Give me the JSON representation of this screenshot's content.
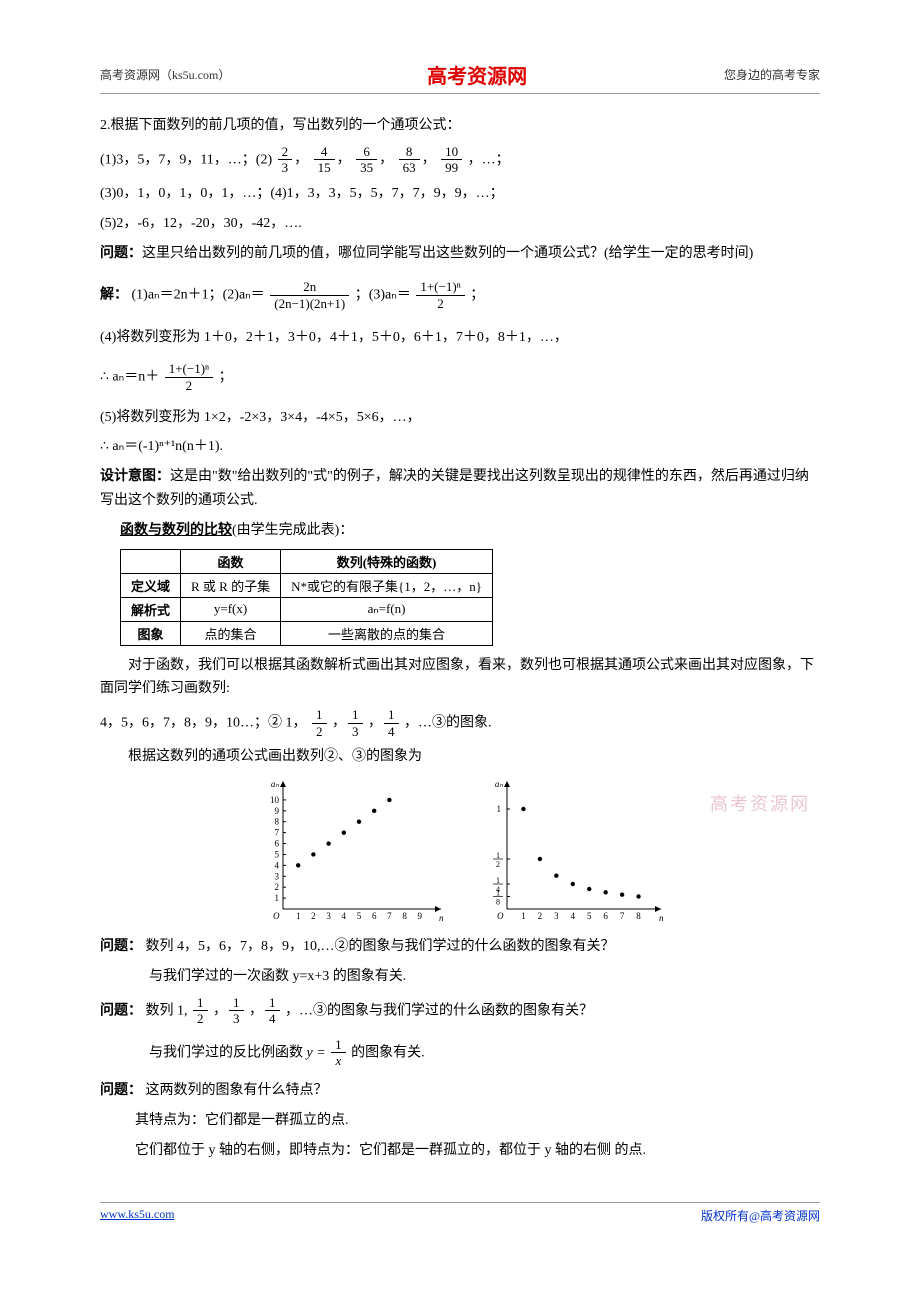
{
  "header": {
    "left": "高考资源网（ks5u.com）",
    "center": "高考资源网",
    "right": "您身边的高考专家"
  },
  "body": {
    "p1": "2.根据下面数列的前几项的值，写出数列的一个通项公式：",
    "seq1_prefix": "(1)3，5，7，9，11，…；(2)",
    "seq1_fracs": [
      {
        "n": "2",
        "d": "3"
      },
      {
        "n": "4",
        "d": "15"
      },
      {
        "n": "6",
        "d": "35"
      },
      {
        "n": "8",
        "d": "63"
      },
      {
        "n": "10",
        "d": "99"
      }
    ],
    "seq1_suffix": "，…；",
    "seq3": "(3)0，1，0，1，0，1，…；(4)1，3，3，5，5，7，7，9，9，…；",
    "seq5": "(5)2，-6，12，-20，30，-42，….",
    "q1": "问题：",
    "q1_text": "这里只给出数列的前几项的值，哪位同学能写出这些数列的一个通项公式？(给学生一定的思考时间)",
    "ans_label": "解：",
    "ans1_prefix": "(1)aₙ＝2n＋1；(2)aₙ＝",
    "ans2_frac": {
      "n": "2n",
      "d": "(2n−1)(2n+1)"
    },
    "ans2_mid": "；(3)aₙ＝",
    "ans3_frac": {
      "n": "1+(−1)ⁿ",
      "d": "2"
    },
    "ans3_suffix": "；",
    "ans4": "(4)将数列变形为 1＋0，2＋1，3＋0，4＋1，5＋0，6＋1，7＋0，8＋1，…，",
    "ans4b_prefix": "∴ aₙ＝n＋",
    "ans4b_frac": {
      "n": "1+(−1)ⁿ",
      "d": "2"
    },
    "ans4b_suffix": "；",
    "ans5a": "(5)将数列变形为 1×2，-2×3，3×4，-4×5，5×6，…，",
    "ans5b": "∴ aₙ＝(-1)ⁿ⁺¹n(n＋1).",
    "intent_label": "设计意图：",
    "intent_text": "这是由\"数\"给出数列的\"式\"的例子，解决的关键是要找出这列数呈现出的规律性的东西，然后再通过归纳写出这个数列的通项公式.",
    "table_title": "函数与数列的比较",
    "table_title_suffix": "(由学生完成此表)：",
    "table": {
      "header": [
        "",
        "函数",
        "数列(特殊的函数)"
      ],
      "rows": [
        [
          "定义域",
          "R 或 R 的子集",
          "N*或它的有限子集{1，2，…，n}"
        ],
        [
          "解析式",
          "y=f(x)",
          "aₙ=f(n)"
        ],
        [
          "图象",
          "点的集合",
          "一些离散的点的集合"
        ]
      ]
    },
    "para_after_table": "对于函数，我们可以根据其函数解析式画出其对应图象，看来，数列也可根据其通项公式来画出其对应图象，下面同学们练习画数列:",
    "ex_line": "4，5，6，7，8，9，10…；②   1，",
    "ex_fracs": [
      {
        "n": "1",
        "d": "2"
      },
      {
        "n": "1",
        "d": "3"
      },
      {
        "n": "1",
        "d": "4"
      }
    ],
    "ex_suffix": "，…③的图象.",
    "para_draw": "根据这数列的通项公式画出数列②、③的图象为",
    "chart2": {
      "type": "scatter",
      "points": [
        [
          1,
          4
        ],
        [
          2,
          5
        ],
        [
          3,
          6
        ],
        [
          4,
          7
        ],
        [
          5,
          8
        ],
        [
          6,
          9
        ],
        [
          7,
          10
        ]
      ],
      "xticks": [
        1,
        2,
        3,
        4,
        5,
        6,
        7,
        8,
        9
      ],
      "yticks": [
        1,
        2,
        3,
        4,
        5,
        6,
        7,
        8,
        9,
        10
      ],
      "ylabel": "aₙ",
      "xlabel": "n",
      "origin": "O",
      "ylim": [
        0,
        11
      ],
      "xlim": [
        0,
        10
      ],
      "marker_color": "#000",
      "axis_color": "#000",
      "fontsize": 9
    },
    "chart3": {
      "type": "scatter",
      "points": [
        [
          1,
          1
        ],
        [
          2,
          0.5
        ],
        [
          3,
          0.333
        ],
        [
          4,
          0.25
        ],
        [
          5,
          0.2
        ],
        [
          6,
          0.167
        ],
        [
          7,
          0.143
        ],
        [
          8,
          0.125
        ]
      ],
      "xticks": [
        1,
        2,
        3,
        4,
        5,
        6,
        7,
        8
      ],
      "ytick_labels": [
        {
          "y": 1,
          "t": "1"
        },
        {
          "y": 0.5,
          "t": "1/2"
        },
        {
          "y": 0.25,
          "t": "1/4"
        },
        {
          "y": 0.125,
          "t": "1/8"
        }
      ],
      "ylabel": "aₙ",
      "xlabel": "n",
      "origin": "O",
      "ylim": [
        0,
        1.2
      ],
      "xlim": [
        0,
        9
      ],
      "marker_color": "#000",
      "axis_color": "#000",
      "fontsize": 9
    },
    "q2_label": "问题：",
    "q2_text": "数列 4，5，6，7，8，9，10,…②的图象与我们学过的什么函数的图象有关？",
    "q2_ans": "与我们学过的一次函数 y=x+3 的图象有关.",
    "q3_label": "问题：",
    "q3_prefix": "  数列 1, ",
    "q3_fracs": [
      {
        "n": "1",
        "d": "2"
      },
      {
        "n": "1",
        "d": "3"
      },
      {
        "n": "1",
        "d": "4"
      }
    ],
    "q3_suffix": "，…③的图象与我们学过的什么函数的图象有关？",
    "q3_ans_prefix": "与我们学过的反比例函数 ",
    "q3_ans_frac": {
      "n": "1",
      "d": "x"
    },
    "q3_ans_y": "y = ",
    "q3_ans_suffix": " 的图象有关.",
    "q4_label": "问题：",
    "q4_text": "   这两数列的图象有什么特点？",
    "q4_ans1": "其特点为：它们都是一群孤立的点.",
    "q4_ans2": "它们都位于 y 轴的右侧，即特点为：它们都是一群孤立的，都位于 y 轴的右侧   的点."
  },
  "watermark": "高考资源网",
  "footer": {
    "left": "www.ks5u.com",
    "right": "版权所有@高考资源网"
  }
}
